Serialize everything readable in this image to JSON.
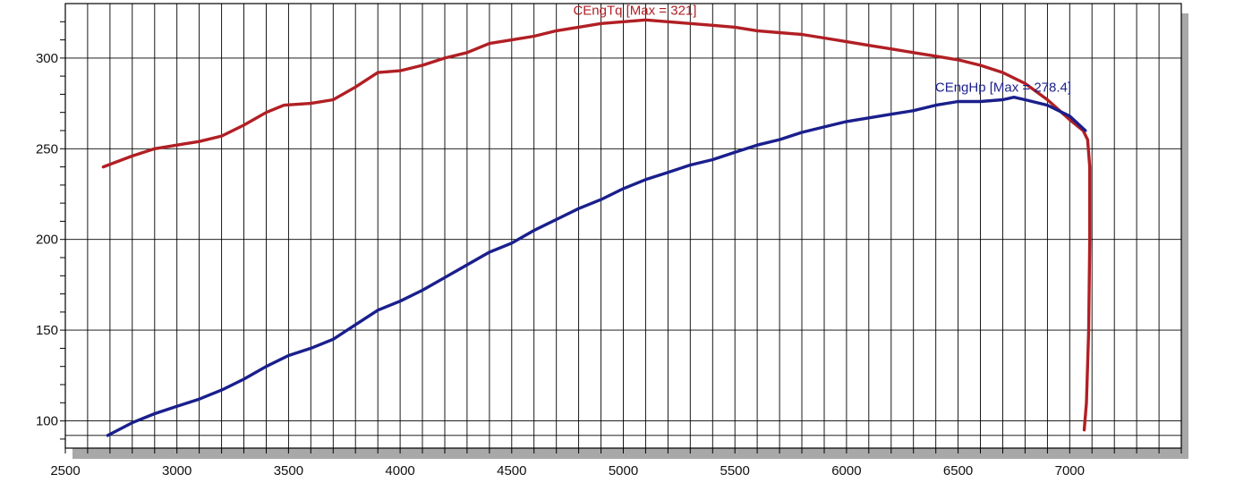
{
  "chart_data": {
    "type": "line",
    "title": "",
    "xlabel": "",
    "ylabel": "",
    "xlim": [
      2500,
      7500
    ],
    "ylim": [
      85,
      330
    ],
    "grid": true,
    "x_ticks": [
      2500,
      3000,
      3500,
      4000,
      4500,
      5000,
      5500,
      6000,
      6500,
      7000
    ],
    "y_ticks": [
      100,
      150,
      200,
      250,
      300
    ],
    "series": [
      {
        "name": "CEngTq",
        "label": "CEngTq [Max = 321]",
        "color": "#b11f24",
        "x": [
          2670,
          2800,
          2900,
          3000,
          3100,
          3200,
          3300,
          3400,
          3480,
          3600,
          3700,
          3800,
          3900,
          4000,
          4100,
          4200,
          4300,
          4400,
          4500,
          4600,
          4700,
          4800,
          4900,
          5000,
          5100,
          5200,
          5300,
          5400,
          5500,
          5600,
          5700,
          5800,
          5900,
          6000,
          6100,
          6200,
          6300,
          6400,
          6500,
          6600,
          6700,
          6800,
          6900,
          7000,
          7060,
          7080,
          7090,
          7090,
          7085,
          7075,
          7065
        ],
        "y": [
          240,
          246,
          250,
          252,
          254,
          257,
          263,
          270,
          274,
          275,
          277,
          284,
          292,
          293,
          296,
          300,
          303,
          308,
          310,
          312,
          315,
          317,
          319,
          320,
          321,
          320,
          319,
          318,
          317,
          315,
          314,
          313,
          311,
          309,
          307,
          305,
          303,
          301,
          299,
          296,
          292,
          286,
          277,
          266,
          260,
          255,
          240,
          200,
          150,
          110,
          95
        ]
      },
      {
        "name": "CEngHp",
        "label": "CEngHp [Max = 278.4]",
        "color": "#1a1f8c",
        "x": [
          2690,
          2800,
          2900,
          3000,
          3100,
          3200,
          3300,
          3400,
          3500,
          3600,
          3700,
          3800,
          3900,
          4000,
          4100,
          4200,
          4300,
          4400,
          4500,
          4600,
          4700,
          4800,
          4900,
          5000,
          5100,
          5200,
          5300,
          5400,
          5500,
          5600,
          5700,
          5800,
          5900,
          6000,
          6100,
          6200,
          6300,
          6400,
          6500,
          6600,
          6700,
          6750,
          6800,
          6900,
          7000,
          7070
        ],
        "y": [
          92,
          99,
          104,
          108,
          112,
          117,
          123,
          130,
          136,
          140,
          145,
          153,
          161,
          166,
          172,
          179,
          186,
          193,
          198,
          205,
          211,
          217,
          222,
          228,
          233,
          237,
          241,
          244,
          248,
          252,
          255,
          259,
          262,
          265,
          267,
          269,
          271,
          274,
          276,
          276,
          277,
          278.4,
          277,
          274,
          268,
          260
        ]
      }
    ]
  }
}
